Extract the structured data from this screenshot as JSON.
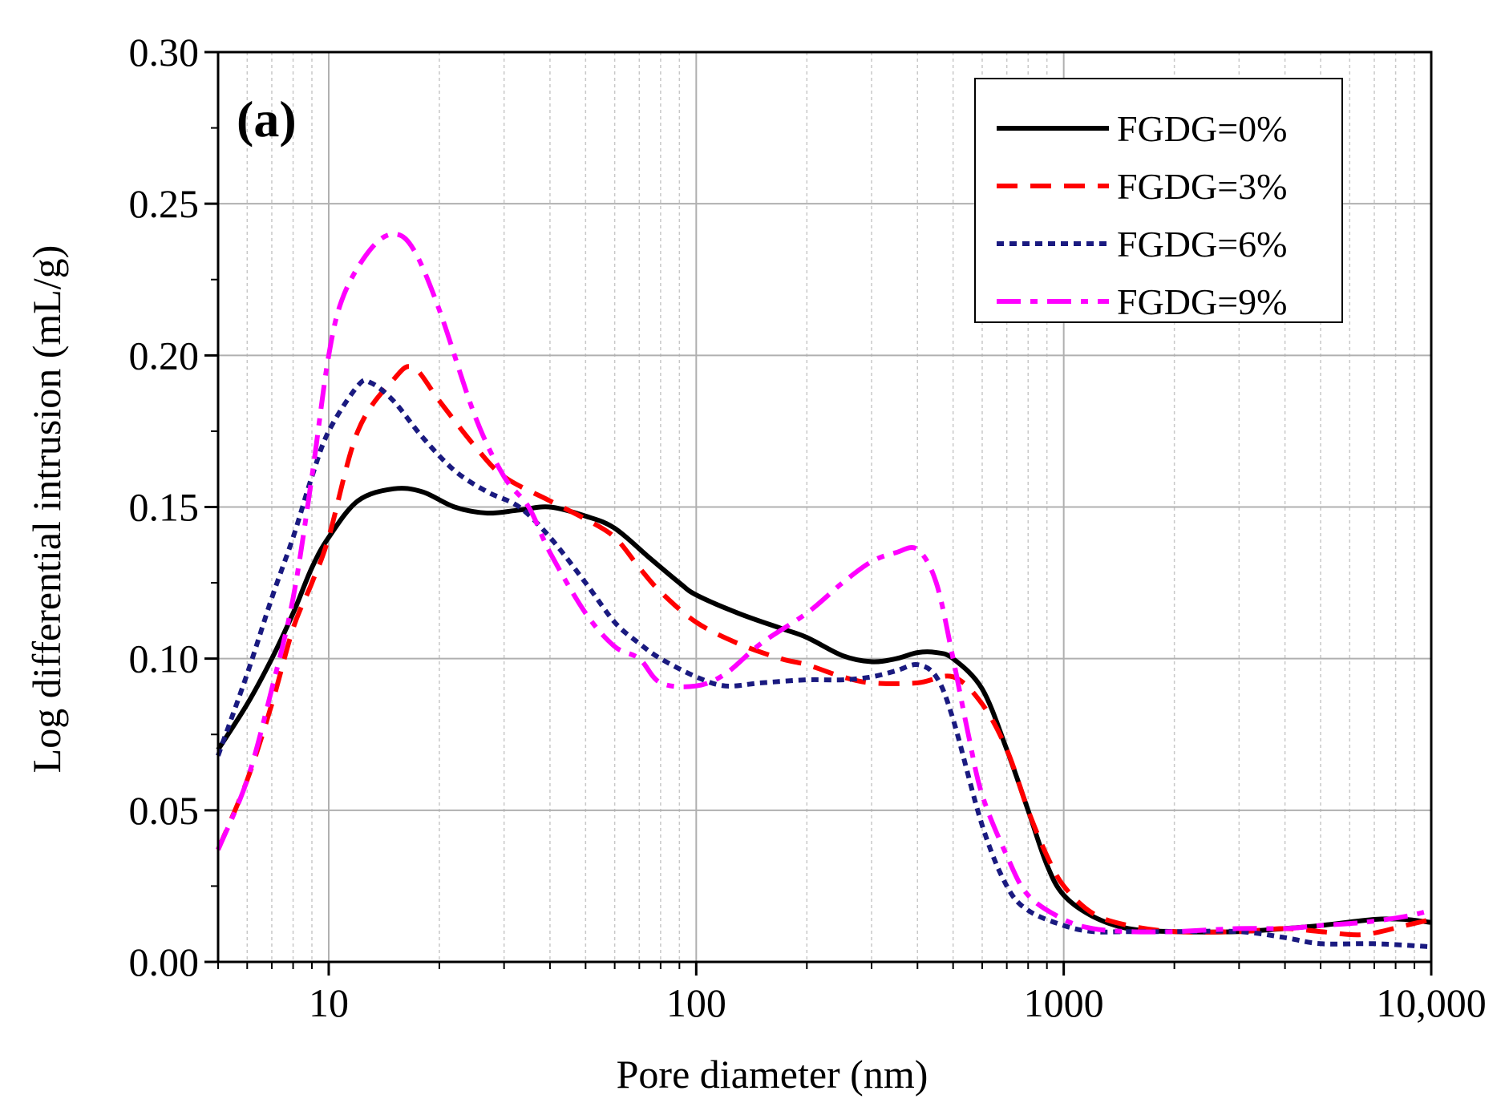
{
  "chart_data": {
    "type": "line",
    "panel_label": "(a)",
    "xlabel": "Pore diameter (nm)",
    "ylabel": "Log differential intrusion (mL/g)",
    "xscale": "log",
    "xlim": [
      5,
      10000
    ],
    "ylim": [
      0,
      0.3
    ],
    "grid": true,
    "legend_position": "top-right",
    "x_ticks": [
      {
        "value": 10,
        "label": "10"
      },
      {
        "value": 100,
        "label": "100"
      },
      {
        "value": 1000,
        "label": "1000"
      },
      {
        "value": 10000,
        "label": "10,000"
      }
    ],
    "y_ticks": [
      {
        "value": 0,
        "label": "0.00"
      },
      {
        "value": 0.05,
        "label": "0.05"
      },
      {
        "value": 0.1,
        "label": "0.10"
      },
      {
        "value": 0.15,
        "label": "0.15"
      },
      {
        "value": 0.2,
        "label": "0.20"
      },
      {
        "value": 0.25,
        "label": "0.25"
      },
      {
        "value": 0.3,
        "label": "0.30"
      }
    ],
    "series": [
      {
        "name": "FGDG=0%",
        "color": "#000000",
        "dash": "solid",
        "x": [
          5,
          6,
          7,
          8,
          9,
          10,
          12,
          15,
          18,
          22,
          27,
          33,
          40,
          50,
          60,
          75,
          90,
          100,
          130,
          170,
          200,
          250,
          300,
          350,
          400,
          450,
          500,
          600,
          700,
          800,
          900,
          1000,
          1200,
          1500,
          2000,
          3000,
          4000,
          5000,
          7000,
          8500,
          10000
        ],
        "y": [
          0.07,
          0.085,
          0.1,
          0.115,
          0.13,
          0.14,
          0.152,
          0.156,
          0.155,
          0.15,
          0.148,
          0.149,
          0.15,
          0.147,
          0.143,
          0.133,
          0.125,
          0.121,
          0.115,
          0.11,
          0.107,
          0.101,
          0.099,
          0.1,
          0.102,
          0.102,
          0.1,
          0.09,
          0.07,
          0.05,
          0.032,
          0.022,
          0.015,
          0.011,
          0.01,
          0.01,
          0.011,
          0.012,
          0.014,
          0.014,
          0.013
        ]
      },
      {
        "name": "FGDG=3%",
        "color": "#ff0000",
        "dash": "dashed",
        "x": [
          5,
          6,
          7,
          8,
          9,
          10,
          12,
          15,
          17,
          20,
          25,
          30,
          40,
          50,
          60,
          70,
          80,
          100,
          130,
          170,
          200,
          250,
          300,
          400,
          500,
          600,
          700,
          800,
          900,
          1000,
          1200,
          1500,
          2000,
          3000,
          4000,
          5000,
          6500,
          8500,
          10000
        ],
        "y": [
          0.037,
          0.06,
          0.085,
          0.11,
          0.125,
          0.14,
          0.175,
          0.192,
          0.196,
          0.185,
          0.17,
          0.16,
          0.152,
          0.146,
          0.14,
          0.13,
          0.122,
          0.112,
          0.105,
          0.1,
          0.098,
          0.094,
          0.092,
          0.092,
          0.094,
          0.085,
          0.07,
          0.05,
          0.035,
          0.025,
          0.016,
          0.012,
          0.01,
          0.01,
          0.011,
          0.01,
          0.009,
          0.012,
          0.014
        ]
      },
      {
        "name": "FGDG=6%",
        "color": "#1a1a80",
        "dash": "dotted",
        "x": [
          5,
          6,
          7,
          8,
          9,
          10,
          12,
          13,
          15,
          18,
          22,
          27,
          33,
          40,
          50,
          60,
          70,
          80,
          100,
          120,
          150,
          200,
          250,
          300,
          350,
          400,
          450,
          500,
          600,
          700,
          800,
          1000,
          1200,
          1500,
          2000,
          3000,
          4000,
          5000,
          7000,
          10000
        ],
        "y": [
          0.068,
          0.095,
          0.12,
          0.14,
          0.16,
          0.175,
          0.19,
          0.191,
          0.185,
          0.173,
          0.162,
          0.155,
          0.15,
          0.14,
          0.125,
          0.112,
          0.105,
          0.1,
          0.094,
          0.091,
          0.092,
          0.093,
          0.093,
          0.094,
          0.096,
          0.098,
          0.094,
          0.08,
          0.045,
          0.025,
          0.017,
          0.012,
          0.01,
          0.01,
          0.01,
          0.01,
          0.008,
          0.006,
          0.006,
          0.005
        ]
      },
      {
        "name": "FGDG=9%",
        "color": "#ff00ff",
        "dash": "dashdot",
        "x": [
          5,
          6,
          7,
          8,
          9,
          10,
          11,
          13,
          15,
          17,
          20,
          25,
          30,
          35,
          40,
          50,
          60,
          70,
          80,
          100,
          120,
          150,
          200,
          250,
          300,
          350,
          400,
          450,
          500,
          550,
          600,
          700,
          800,
          1000,
          1200,
          1500,
          2000,
          3000,
          4000,
          5000,
          6500,
          8500,
          10000
        ],
        "y": [
          0.037,
          0.06,
          0.09,
          0.12,
          0.16,
          0.2,
          0.22,
          0.235,
          0.24,
          0.235,
          0.215,
          0.18,
          0.16,
          0.15,
          0.135,
          0.115,
          0.104,
          0.1,
          0.092,
          0.091,
          0.095,
          0.105,
          0.115,
          0.125,
          0.132,
          0.135,
          0.136,
          0.125,
          0.1,
          0.075,
          0.055,
          0.035,
          0.022,
          0.014,
          0.011,
          0.01,
          0.01,
          0.011,
          0.011,
          0.012,
          0.013,
          0.015,
          0.017
        ]
      }
    ]
  }
}
